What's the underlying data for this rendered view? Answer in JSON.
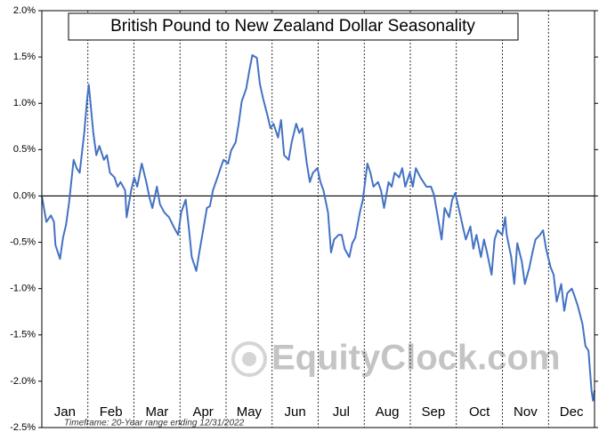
{
  "chart_data": {
    "type": "line",
    "title": "British Pound to New Zealand Dollar Seasonality",
    "footnote": "Timeframe: 20-Year range ending 12/31/2022",
    "watermark": "EquityClock.com",
    "months": [
      "Jan",
      "Feb",
      "Mar",
      "Apr",
      "May",
      "Jun",
      "Jul",
      "Aug",
      "Sep",
      "Oct",
      "Nov",
      "Dec"
    ],
    "xlim": [
      1,
      366
    ],
    "ylim": [
      -2.5,
      2
    ],
    "yticks": [
      {
        "value": 2,
        "label": "2.0%"
      },
      {
        "value": 1.5,
        "label": "1.5%"
      },
      {
        "value": 1,
        "label": "1.0%"
      },
      {
        "value": 0.5,
        "label": "0.5%"
      },
      {
        "value": 0,
        "label": "0.0%"
      },
      {
        "value": -0.5,
        "label": "-0.5%"
      },
      {
        "value": -1,
        "label": "-1.0%"
      },
      {
        "value": -1.5,
        "label": "-1.5%"
      },
      {
        "value": -2,
        "label": "-2.0%"
      },
      {
        "value": -2.5,
        "label": "-2.5%"
      }
    ],
    "color": "#4472c4",
    "x": [
      1,
      4,
      7,
      9,
      10,
      13,
      15,
      17,
      19,
      22,
      24,
      26,
      29,
      31,
      32,
      35,
      37,
      39,
      42,
      44,
      46,
      49,
      51,
      53,
      56,
      57,
      60,
      62,
      64,
      67,
      70,
      72,
      74,
      77,
      79,
      82,
      85,
      88,
      91,
      93,
      96,
      98,
      100,
      103,
      105,
      107,
      110,
      112,
      114,
      117,
      119,
      121,
      124,
      126,
      129,
      131,
      133,
      136,
      138,
      140,
      143,
      145,
      147,
      150,
      152,
      154,
      157,
      159,
      161,
      164,
      166,
      169,
      171,
      173,
      176,
      178,
      180,
      183,
      185,
      187,
      190,
      192,
      194,
      197,
      199,
      201,
      204,
      206,
      208,
      211,
      213,
      216,
      218,
      220,
      223,
      225,
      227,
      230,
      232,
      234,
      237,
      239,
      241,
      244,
      246,
      248,
      251,
      253,
      255,
      258,
      260,
      262,
      265,
      267,
      270,
      272,
      274,
      277,
      279,
      281,
      284,
      286,
      288,
      291,
      293,
      295,
      298,
      300,
      302,
      305,
      307,
      308,
      311,
      313,
      315,
      318,
      320,
      323,
      325,
      327,
      330,
      332,
      334,
      337,
      339,
      341,
      344,
      346,
      348,
      351,
      353,
      355,
      358,
      360,
      362,
      364,
      365,
      366
    ],
    "values": [
      0,
      -0.28,
      -0.21,
      -0.28,
      -0.53,
      -0.68,
      -0.45,
      -0.31,
      -0.07,
      0.39,
      0.3,
      0.25,
      0.68,
      1.06,
      1.2,
      0.68,
      0.44,
      0.54,
      0.39,
      0.44,
      0.25,
      0.2,
      0.1,
      0.15,
      0.06,
      -0.23,
      0.06,
      0.2,
      0.1,
      0.35,
      0.15,
      -0.01,
      -0.13,
      0.1,
      -0.09,
      -0.18,
      -0.23,
      -0.33,
      -0.42,
      -0.18,
      -0.04,
      -0.33,
      -0.66,
      -0.81,
      -0.61,
      -0.42,
      -0.13,
      -0.11,
      0.06,
      0.2,
      0.3,
      0.39,
      0.35,
      0.49,
      0.58,
      0.78,
      1.02,
      1.16,
      1.35,
      1.52,
      1.49,
      1.21,
      1.06,
      0.87,
      0.73,
      0.78,
      0.63,
      0.82,
      0.44,
      0.39,
      0.58,
      0.78,
      0.68,
      0.73,
      0.35,
      0.15,
      0.25,
      0.3,
      0.15,
      0.06,
      -0.18,
      -0.61,
      -0.47,
      -0.42,
      -0.42,
      -0.57,
      -0.66,
      -0.51,
      -0.45,
      -0.18,
      -0.04,
      0.35,
      0.25,
      0.1,
      0.15,
      0.06,
      -0.13,
      0.15,
      0.1,
      0.25,
      0.2,
      0.3,
      0.1,
      0.25,
      0.1,
      0.3,
      0.2,
      0.15,
      0.1,
      0.1,
      0.01,
      -0.18,
      -0.47,
      -0.13,
      -0.23,
      -0.04,
      0.03,
      -0.18,
      -0.33,
      -0.47,
      -0.33,
      -0.57,
      -0.42,
      -0.66,
      -0.47,
      -0.61,
      -0.85,
      -0.47,
      -0.37,
      -0.42,
      -0.23,
      -0.42,
      -0.66,
      -0.95,
      -0.51,
      -0.71,
      -0.95,
      -0.77,
      -0.61,
      -0.47,
      -0.42,
      -0.37,
      -0.57,
      -0.77,
      -0.85,
      -1.14,
      -0.95,
      -1.24,
      -1.05,
      -1,
      -1.09,
      -1.19,
      -1.38,
      -1.62,
      -1.67,
      -2.1,
      -2.21,
      -2.1
    ]
  }
}
